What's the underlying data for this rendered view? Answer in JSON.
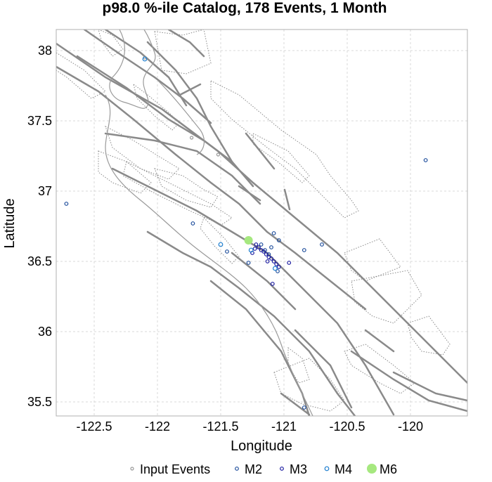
{
  "chart_data": {
    "type": "scatter",
    "title": "p98.0 %-ile Catalog, 178 Events, 1 Month",
    "xlabel": "Longitude",
    "ylabel": "Latitude",
    "xlim": [
      -122.8,
      -119.55
    ],
    "ylim": [
      35.4,
      38.15
    ],
    "xticks": [
      -122.5,
      -122,
      -121.5,
      -121,
      -120.5,
      -120
    ],
    "xtick_labels": [
      "-122.5",
      "-122",
      "-121.5",
      "-121",
      "-120.5",
      "-120"
    ],
    "yticks": [
      35.5,
      36,
      36.5,
      37,
      37.5,
      38
    ],
    "ytick_labels": [
      "35.5",
      "36",
      "36.5",
      "37",
      "37.5",
      "38"
    ],
    "grid": true,
    "legend_position": "bottom",
    "legend": [
      "Input Events",
      "M2",
      "M3",
      "M4",
      "M6"
    ],
    "series": [
      {
        "name": "Input Events",
        "color": "#999999",
        "marker": "open-circle-small",
        "points": [
          [
            -122.1,
            37.95
          ],
          [
            -121.73,
            37.38
          ],
          [
            -121.52,
            37.26
          ],
          [
            -121.27,
            36.66
          ],
          [
            -121.2,
            36.6
          ]
        ]
      },
      {
        "name": "M2",
        "color": "#1f4e9c",
        "marker": "open-circle",
        "points": [
          [
            -122.72,
            36.91
          ],
          [
            -119.88,
            37.22
          ],
          [
            -121.72,
            36.77
          ],
          [
            -121.45,
            36.57
          ],
          [
            -121.28,
            36.49
          ],
          [
            -121.08,
            36.7
          ],
          [
            -121.04,
            36.65
          ],
          [
            -120.84,
            36.58
          ],
          [
            -120.7,
            36.62
          ],
          [
            -120.84,
            35.46
          ],
          [
            -121.15,
            36.58
          ],
          [
            -121.12,
            36.55
          ],
          [
            -121.05,
            36.43
          ],
          [
            -121.1,
            36.6
          ],
          [
            -121.18,
            36.62
          ]
        ]
      },
      {
        "name": "M3",
        "color": "#1a1aa0",
        "marker": "open-circle",
        "points": [
          [
            -121.22,
            36.62
          ],
          [
            -121.2,
            36.6
          ],
          [
            -121.18,
            36.58
          ],
          [
            -121.16,
            36.57
          ],
          [
            -121.14,
            36.55
          ],
          [
            -121.12,
            36.53
          ],
          [
            -121.1,
            36.52
          ],
          [
            -121.08,
            36.5
          ],
          [
            -121.06,
            36.48
          ],
          [
            -121.04,
            36.46
          ],
          [
            -121.09,
            36.34
          ],
          [
            -120.96,
            36.49
          ],
          [
            -121.25,
            36.56
          ],
          [
            -121.23,
            36.59
          ],
          [
            -121.13,
            36.5
          ]
        ]
      },
      {
        "name": "M4",
        "color": "#1f7fd0",
        "marker": "open-circle-large",
        "points": [
          [
            -122.1,
            37.94
          ],
          [
            -121.5,
            36.62
          ],
          [
            -121.26,
            36.58
          ],
          [
            -121.07,
            36.45
          ]
        ]
      },
      {
        "name": "M6",
        "color": "#a6e87f",
        "marker": "filled-circle",
        "points": [
          [
            -121.28,
            36.65
          ]
        ]
      }
    ]
  }
}
